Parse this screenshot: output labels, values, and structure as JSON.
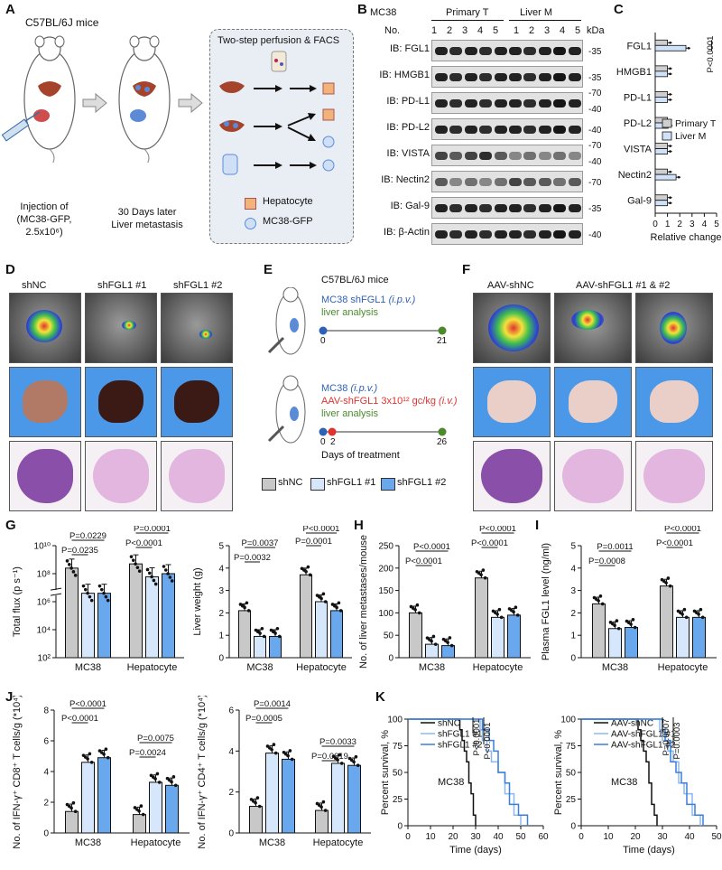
{
  "panels": [
    "A",
    "B",
    "C",
    "D",
    "E",
    "F",
    "G",
    "H",
    "I",
    "J",
    "K"
  ],
  "A": {
    "mouse_strain": "C57BL/6J mice",
    "injection": [
      "Injection of",
      "(MC38-GFP,",
      "2.5x10⁶)"
    ],
    "metastasis": [
      "30 Days later",
      "Liver metastasis"
    ],
    "box_title": "Two-step perfusion & FACS",
    "legend": [
      "Hepatocyte",
      "MC38-GFP"
    ]
  },
  "B": {
    "cell_line": "MC38",
    "groups": [
      "Primary T",
      "Liver M"
    ],
    "no_label": "No.",
    "lanes": [
      "1",
      "2",
      "3",
      "4",
      "5",
      "1",
      "2",
      "3",
      "4",
      "5"
    ],
    "kda": "kDa",
    "blots": [
      {
        "label": "IB: FGL1",
        "markers": [
          "35"
        ]
      },
      {
        "label": "IB: HMGB1",
        "markers": [
          "35"
        ]
      },
      {
        "label": "IB: PD-L1",
        "markers": [
          "70",
          "40"
        ]
      },
      {
        "label": "IB: PD-L2",
        "markers": [
          "40"
        ]
      },
      {
        "label": "IB: VISTA",
        "markers": [
          "70",
          "40"
        ]
      },
      {
        "label": "IB: Nectin2",
        "markers": [
          "70"
        ]
      },
      {
        "label": "IB: Gal-9",
        "markers": [
          "35"
        ]
      },
      {
        "label": "IB: β-Actin",
        "markers": [
          "40"
        ]
      }
    ]
  },
  "D": {
    "groups": [
      "shNC",
      "shFGL1 #1",
      "shFGL1 #2"
    ]
  },
  "E": {
    "strain": "C57BL/6J mice",
    "exp1": {
      "line1": "MC38 shFGL1 ",
      "line1_route": "(i.p.v.)",
      "line2": "liver analysis",
      "t0": "0",
      "t1": "21"
    },
    "exp2": {
      "line1": "MC38 ",
      "line1_route": "(i.p.v.)",
      "line2": "AAV-shFGL1 3x10¹² gc/kg ",
      "line2_route": "(i.v.)",
      "line3": "liver analysis",
      "t0": "0",
      "t1": "2",
      "t2": "26"
    },
    "days_label": "Days of treatment",
    "legend": [
      "shNC",
      "shFGL1 #1",
      "shFGL1 #2"
    ]
  },
  "F": {
    "groups": [
      "AAV-shNC",
      "AAV-shFGL1 #1 & #2"
    ]
  },
  "colors": {
    "shNC": "#c8c8c8",
    "sh1": "#d6e6fb",
    "sh2": "#6aa8ee",
    "primary": "#cfcfcf",
    "liverM": "#cfe2fa",
    "blue_text": "#2e62b5",
    "red_text": "#e0322f",
    "green_text": "#4a8a2a"
  },
  "chart_data": [
    {
      "panel": "C",
      "type": "bar",
      "orientation": "horizontal",
      "categories": [
        "FGL1",
        "HMGB1",
        "PD-L1",
        "PD-L2",
        "VISTA",
        "Nectin2",
        "Gal-9"
      ],
      "series": [
        {
          "name": "Primary T",
          "values": [
            1.0,
            1.0,
            1.0,
            1.0,
            1.0,
            1.0,
            1.0
          ]
        },
        {
          "name": "Liver M",
          "values": [
            2.5,
            1.0,
            1.0,
            1.05,
            1.0,
            1.7,
            1.0
          ]
        }
      ],
      "xlabel": "Relative change",
      "xlim": [
        0,
        5
      ],
      "xticks": [
        "0",
        "1",
        "2",
        "3",
        "4",
        "5"
      ],
      "annotation": "P<0.0001"
    },
    {
      "panel": "G1",
      "type": "bar",
      "scale": "log",
      "categories": [
        "MC38",
        "Hepatocyte"
      ],
      "series": [
        {
          "name": "shNC",
          "values": [
            250000000,
            500000000
          ]
        },
        {
          "name": "shFGL1 #1",
          "values": [
            4000000,
            60000000
          ]
        },
        {
          "name": "shFGL1 #2",
          "values": [
            4000000,
            100000000
          ]
        }
      ],
      "ylabel": "Total flux (p s⁻¹)",
      "yticks": [
        "10²",
        "10⁴",
        "10⁶",
        "10⁸",
        "10¹⁰"
      ],
      "pvalues": [
        "P=0.0229",
        "P=0.0235",
        "P=0.0001",
        "P<0.0001"
      ]
    },
    {
      "panel": "G2",
      "type": "bar",
      "categories": [
        "MC38",
        "Hepatocyte"
      ],
      "series": [
        {
          "name": "shNC",
          "values": [
            2.1,
            3.7
          ]
        },
        {
          "name": "shFGL1 #1",
          "values": [
            0.95,
            2.5
          ]
        },
        {
          "name": "shFGL1 #2",
          "values": [
            0.95,
            2.1
          ]
        }
      ],
      "ylabel": "Liver weight (g)",
      "ylim": [
        0,
        5
      ],
      "yticks": [
        "0",
        "1",
        "2",
        "3",
        "4",
        "5"
      ],
      "pvalues": [
        "P=0.0037",
        "P=0.0032",
        "P<0.0001",
        "P=0.0001"
      ]
    },
    {
      "panel": "H",
      "type": "bar",
      "categories": [
        "MC38",
        "Hepatocyte"
      ],
      "series": [
        {
          "name": "shNC",
          "values": [
            100,
            178
          ]
        },
        {
          "name": "shFGL1 #1",
          "values": [
            30,
            90
          ]
        },
        {
          "name": "shFGL1 #2",
          "values": [
            27,
            95
          ]
        }
      ],
      "ylabel": "No. of liver metastases/mouse",
      "ylim": [
        0,
        250
      ],
      "yticks": [
        "0",
        "50",
        "100",
        "150",
        "200",
        "250"
      ],
      "pvalues": [
        "P<0.0001",
        "P<0.0001",
        "P<0.0001",
        "P<0.0001"
      ]
    },
    {
      "panel": "I",
      "type": "bar",
      "categories": [
        "MC38",
        "Hepatocyte"
      ],
      "series": [
        {
          "name": "shNC",
          "values": [
            2.4,
            3.2
          ]
        },
        {
          "name": "shFGL1 #1",
          "values": [
            1.3,
            1.8
          ]
        },
        {
          "name": "shFGL1 #2",
          "values": [
            1.35,
            1.8
          ]
        }
      ],
      "ylabel": "Plasma FGL1 level (ng/ml)",
      "ylim": [
        0,
        5
      ],
      "yticks": [
        "0",
        "1",
        "2",
        "3",
        "4",
        "5"
      ],
      "pvalues": [
        "P=0.0011",
        "P=0.0008",
        "P<0.0001",
        "P<0.0001"
      ]
    },
    {
      "panel": "J1",
      "type": "bar",
      "categories": [
        "MC38",
        "Hepatocyte"
      ],
      "series": [
        {
          "name": "shNC",
          "values": [
            1.4,
            1.2
          ]
        },
        {
          "name": "shFGL1 #1",
          "values": [
            4.6,
            3.3
          ]
        },
        {
          "name": "shFGL1 #2",
          "values": [
            4.9,
            3.1
          ]
        }
      ],
      "ylabel": "No. of IFN-γ⁺ CD8⁺ T cells/g (*10⁴)",
      "ylim": [
        0,
        8
      ],
      "yticks": [
        "0",
        "2",
        "4",
        "6",
        "8"
      ],
      "pvalues": [
        "P<0.0001",
        "P<0.0001",
        "P=0.0075",
        "P=0.0024"
      ]
    },
    {
      "panel": "J2",
      "type": "bar",
      "categories": [
        "MC38",
        "Hepatocyte"
      ],
      "series": [
        {
          "name": "shNC",
          "values": [
            1.3,
            1.1
          ]
        },
        {
          "name": "shFGL1 #1",
          "values": [
            3.9,
            3.4
          ]
        },
        {
          "name": "shFGL1 #2",
          "values": [
            3.6,
            3.3
          ]
        }
      ],
      "ylabel": "No. of IFN-γ⁺ CD4⁺ T cells/g (*10⁴)",
      "ylim": [
        0,
        6
      ],
      "yticks": [
        "0",
        "2",
        "4",
        "6"
      ],
      "pvalues": [
        "P=0.0014",
        "P=0.0005",
        "P=0.0033",
        "P=0.0019"
      ]
    },
    {
      "panel": "K1",
      "type": "line",
      "step": true,
      "series": [
        {
          "name": "shNC",
          "x": [
            0,
            22,
            23,
            24,
            25,
            26,
            27,
            28,
            29,
            30
          ],
          "y": [
            100,
            100,
            90,
            80,
            70,
            60,
            40,
            30,
            10,
            0
          ]
        },
        {
          "name": "shFGL1 #1",
          "x": [
            0,
            30,
            32,
            33,
            35,
            37,
            40,
            43,
            47,
            50
          ],
          "y": [
            100,
            100,
            90,
            80,
            70,
            60,
            50,
            30,
            10,
            0
          ]
        },
        {
          "name": "shFGL1 #2",
          "x": [
            0,
            31,
            33,
            36,
            38,
            40,
            43,
            45,
            49,
            53
          ],
          "y": [
            100,
            100,
            90,
            80,
            70,
            50,
            40,
            20,
            10,
            0
          ]
        }
      ],
      "xlabel": "Time (days)",
      "ylabel": "Percent survival, %",
      "xlim": [
        0,
        60
      ],
      "ylim": [
        0,
        100
      ],
      "xticks": [
        "0",
        "10",
        "20",
        "30",
        "40",
        "50",
        "60"
      ],
      "yticks": [
        "0",
        "25",
        "50",
        "75",
        "100"
      ],
      "annotation": "MC38",
      "pvalues": [
        "P<0.0001",
        "P<0.0001"
      ]
    },
    {
      "panel": "K2",
      "type": "line",
      "step": true,
      "series": [
        {
          "name": "AAV-shNC",
          "x": [
            0,
            20,
            21,
            22,
            23,
            24,
            25,
            26,
            27,
            28
          ],
          "y": [
            100,
            100,
            90,
            80,
            70,
            60,
            40,
            20,
            10,
            0
          ]
        },
        {
          "name": "AAV-shFGL1 #1",
          "x": [
            0,
            27,
            29,
            30,
            32,
            34,
            36,
            38,
            41,
            44
          ],
          "y": [
            100,
            100,
            90,
            80,
            70,
            60,
            40,
            30,
            10,
            0
          ]
        },
        {
          "name": "AAV-shFGL1 #2",
          "x": [
            0,
            28,
            30,
            31,
            33,
            35,
            37,
            39,
            42,
            45
          ],
          "y": [
            100,
            100,
            90,
            80,
            60,
            50,
            40,
            20,
            10,
            0
          ]
        }
      ],
      "xlabel": "Time (days)",
      "ylabel": "Percent survival, %",
      "xlim": [
        0,
        50
      ],
      "ylim": [
        0,
        100
      ],
      "xticks": [
        "0",
        "10",
        "20",
        "30",
        "40",
        "50"
      ],
      "yticks": [
        "0",
        "25",
        "50",
        "75",
        "100"
      ],
      "annotation": "MC38",
      "pvalues": [
        "P=0.0007",
        "P=0.0003"
      ]
    }
  ]
}
